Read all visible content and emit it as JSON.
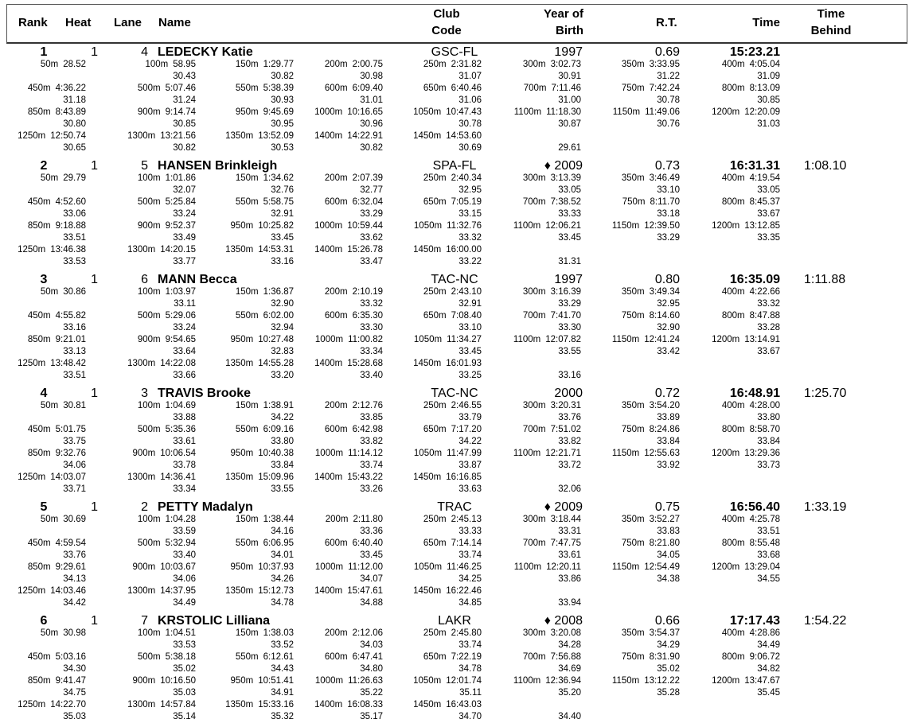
{
  "header": {
    "rank": "Rank",
    "heat": "Heat",
    "lane": "Lane",
    "name": "Name",
    "club_1": "Club",
    "club_2": "Code",
    "yob_1": "Year of",
    "yob_2": "Birth",
    "rt": "R.T.",
    "time": "Time",
    "behind_1": "Time",
    "behind_2": "Behind"
  },
  "entries": [
    {
      "rank": "1",
      "heat": "1",
      "lane": "4",
      "name": "LEDECKY Katie",
      "club": "GSC-FL",
      "year": "1997",
      "rt": "0.69",
      "time": "15:23.21",
      "behind": "",
      "splits": [
        [
          "50m",
          "28.52",
          ""
        ],
        [
          "100m",
          "58.95",
          "30.43"
        ],
        [
          "150m",
          "1:29.77",
          "30.82"
        ],
        [
          "200m",
          "2:00.75",
          "30.98"
        ],
        [
          "250m",
          "2:31.82",
          "31.07"
        ],
        [
          "300m",
          "3:02.73",
          "30.91"
        ],
        [
          "350m",
          "3:33.95",
          "31.22"
        ],
        [
          "400m",
          "4:05.04",
          "31.09"
        ],
        [
          "450m",
          "4:36.22",
          "31.18"
        ],
        [
          "500m",
          "5:07.46",
          "31.24"
        ],
        [
          "550m",
          "5:38.39",
          "30.93"
        ],
        [
          "600m",
          "6:09.40",
          "31.01"
        ],
        [
          "650m",
          "6:40.46",
          "31.06"
        ],
        [
          "700m",
          "7:11.46",
          "31.00"
        ],
        [
          "750m",
          "7:42.24",
          "30.78"
        ],
        [
          "800m",
          "8:13.09",
          "30.85"
        ],
        [
          "850m",
          "8:43.89",
          "30.80"
        ],
        [
          "900m",
          "9:14.74",
          "30.85"
        ],
        [
          "950m",
          "9:45.69",
          "30.95"
        ],
        [
          "1000m",
          "10:16.65",
          "30.96"
        ],
        [
          "1050m",
          "10:47.43",
          "30.78"
        ],
        [
          "1100m",
          "11:18.30",
          "30.87"
        ],
        [
          "1150m",
          "11:49.06",
          "30.76"
        ],
        [
          "1200m",
          "12:20.09",
          "31.03"
        ],
        [
          "1250m",
          "12:50.74",
          "30.65"
        ],
        [
          "1300m",
          "13:21.56",
          "30.82"
        ],
        [
          "1350m",
          "13:52.09",
          "30.53"
        ],
        [
          "1400m",
          "14:22.91",
          "30.82"
        ],
        [
          "1450m",
          "14:53.60",
          "30.69"
        ]
      ],
      "final_split": "29.61"
    },
    {
      "rank": "2",
      "heat": "1",
      "lane": "5",
      "name": "HANSEN Brinkleigh",
      "club": "SPA-FL",
      "year": "♦ 2009",
      "rt": "0.73",
      "time": "16:31.31",
      "behind": "1:08.10",
      "splits": [
        [
          "50m",
          "29.79",
          ""
        ],
        [
          "100m",
          "1:01.86",
          "32.07"
        ],
        [
          "150m",
          "1:34.62",
          "32.76"
        ],
        [
          "200m",
          "2:07.39",
          "32.77"
        ],
        [
          "250m",
          "2:40.34",
          "32.95"
        ],
        [
          "300m",
          "3:13.39",
          "33.05"
        ],
        [
          "350m",
          "3:46.49",
          "33.10"
        ],
        [
          "400m",
          "4:19.54",
          "33.05"
        ],
        [
          "450m",
          "4:52.60",
          "33.06"
        ],
        [
          "500m",
          "5:25.84",
          "33.24"
        ],
        [
          "550m",
          "5:58.75",
          "32.91"
        ],
        [
          "600m",
          "6:32.04",
          "33.29"
        ],
        [
          "650m",
          "7:05.19",
          "33.15"
        ],
        [
          "700m",
          "7:38.52",
          "33.33"
        ],
        [
          "750m",
          "8:11.70",
          "33.18"
        ],
        [
          "800m",
          "8:45.37",
          "33.67"
        ],
        [
          "850m",
          "9:18.88",
          "33.51"
        ],
        [
          "900m",
          "9:52.37",
          "33.49"
        ],
        [
          "950m",
          "10:25.82",
          "33.45"
        ],
        [
          "1000m",
          "10:59.44",
          "33.62"
        ],
        [
          "1050m",
          "11:32.76",
          "33.32"
        ],
        [
          "1100m",
          "12:06.21",
          "33.45"
        ],
        [
          "1150m",
          "12:39.50",
          "33.29"
        ],
        [
          "1200m",
          "13:12.85",
          "33.35"
        ],
        [
          "1250m",
          "13:46.38",
          "33.53"
        ],
        [
          "1300m",
          "14:20.15",
          "33.77"
        ],
        [
          "1350m",
          "14:53.31",
          "33.16"
        ],
        [
          "1400m",
          "15:26.78",
          "33.47"
        ],
        [
          "1450m",
          "16:00.00",
          "33.22"
        ]
      ],
      "final_split": "31.31"
    },
    {
      "rank": "3",
      "heat": "1",
      "lane": "6",
      "name": "MANN Becca",
      "club": "TAC-NC",
      "year": "1997",
      "rt": "0.80",
      "time": "16:35.09",
      "behind": "1:11.88",
      "splits": [
        [
          "50m",
          "30.86",
          ""
        ],
        [
          "100m",
          "1:03.97",
          "33.11"
        ],
        [
          "150m",
          "1:36.87",
          "32.90"
        ],
        [
          "200m",
          "2:10.19",
          "33.32"
        ],
        [
          "250m",
          "2:43.10",
          "32.91"
        ],
        [
          "300m",
          "3:16.39",
          "33.29"
        ],
        [
          "350m",
          "3:49.34",
          "32.95"
        ],
        [
          "400m",
          "4:22.66",
          "33.32"
        ],
        [
          "450m",
          "4:55.82",
          "33.16"
        ],
        [
          "500m",
          "5:29.06",
          "33.24"
        ],
        [
          "550m",
          "6:02.00",
          "32.94"
        ],
        [
          "600m",
          "6:35.30",
          "33.30"
        ],
        [
          "650m",
          "7:08.40",
          "33.10"
        ],
        [
          "700m",
          "7:41.70",
          "33.30"
        ],
        [
          "750m",
          "8:14.60",
          "32.90"
        ],
        [
          "800m",
          "8:47.88",
          "33.28"
        ],
        [
          "850m",
          "9:21.01",
          "33.13"
        ],
        [
          "900m",
          "9:54.65",
          "33.64"
        ],
        [
          "950m",
          "10:27.48",
          "32.83"
        ],
        [
          "1000m",
          "11:00.82",
          "33.34"
        ],
        [
          "1050m",
          "11:34.27",
          "33.45"
        ],
        [
          "1100m",
          "12:07.82",
          "33.55"
        ],
        [
          "1150m",
          "12:41.24",
          "33.42"
        ],
        [
          "1200m",
          "13:14.91",
          "33.67"
        ],
        [
          "1250m",
          "13:48.42",
          "33.51"
        ],
        [
          "1300m",
          "14:22.08",
          "33.66"
        ],
        [
          "1350m",
          "14:55.28",
          "33.20"
        ],
        [
          "1400m",
          "15:28.68",
          "33.40"
        ],
        [
          "1450m",
          "16:01.93",
          "33.25"
        ]
      ],
      "final_split": "33.16"
    },
    {
      "rank": "4",
      "heat": "1",
      "lane": "3",
      "name": "TRAVIS Brooke",
      "club": "TAC-NC",
      "year": "2000",
      "rt": "0.72",
      "time": "16:48.91",
      "behind": "1:25.70",
      "splits": [
        [
          "50m",
          "30.81",
          ""
        ],
        [
          "100m",
          "1:04.69",
          "33.88"
        ],
        [
          "150m",
          "1:38.91",
          "34.22"
        ],
        [
          "200m",
          "2:12.76",
          "33.85"
        ],
        [
          "250m",
          "2:46.55",
          "33.79"
        ],
        [
          "300m",
          "3:20.31",
          "33.76"
        ],
        [
          "350m",
          "3:54.20",
          "33.89"
        ],
        [
          "400m",
          "4:28.00",
          "33.80"
        ],
        [
          "450m",
          "5:01.75",
          "33.75"
        ],
        [
          "500m",
          "5:35.36",
          "33.61"
        ],
        [
          "550m",
          "6:09.16",
          "33.80"
        ],
        [
          "600m",
          "6:42.98",
          "33.82"
        ],
        [
          "650m",
          "7:17.20",
          "34.22"
        ],
        [
          "700m",
          "7:51.02",
          "33.82"
        ],
        [
          "750m",
          "8:24.86",
          "33.84"
        ],
        [
          "800m",
          "8:58.70",
          "33.84"
        ],
        [
          "850m",
          "9:32.76",
          "34.06"
        ],
        [
          "900m",
          "10:06.54",
          "33.78"
        ],
        [
          "950m",
          "10:40.38",
          "33.84"
        ],
        [
          "1000m",
          "11:14.12",
          "33.74"
        ],
        [
          "1050m",
          "11:47.99",
          "33.87"
        ],
        [
          "1100m",
          "12:21.71",
          "33.72"
        ],
        [
          "1150m",
          "12:55.63",
          "33.92"
        ],
        [
          "1200m",
          "13:29.36",
          "33.73"
        ],
        [
          "1250m",
          "14:03.07",
          "33.71"
        ],
        [
          "1300m",
          "14:36.41",
          "33.34"
        ],
        [
          "1350m",
          "15:09.96",
          "33.55"
        ],
        [
          "1400m",
          "15:43.22",
          "33.26"
        ],
        [
          "1450m",
          "16:16.85",
          "33.63"
        ]
      ],
      "final_split": "32.06"
    },
    {
      "rank": "5",
      "heat": "1",
      "lane": "2",
      "name": "PETTY Madalyn",
      "club": "TRAC",
      "year": "♦ 2009",
      "rt": "0.75",
      "time": "16:56.40",
      "behind": "1:33.19",
      "splits": [
        [
          "50m",
          "30.69",
          ""
        ],
        [
          "100m",
          "1:04.28",
          "33.59"
        ],
        [
          "150m",
          "1:38.44",
          "34.16"
        ],
        [
          "200m",
          "2:11.80",
          "33.36"
        ],
        [
          "250m",
          "2:45.13",
          "33.33"
        ],
        [
          "300m",
          "3:18.44",
          "33.31"
        ],
        [
          "350m",
          "3:52.27",
          "33.83"
        ],
        [
          "400m",
          "4:25.78",
          "33.51"
        ],
        [
          "450m",
          "4:59.54",
          "33.76"
        ],
        [
          "500m",
          "5:32.94",
          "33.40"
        ],
        [
          "550m",
          "6:06.95",
          "34.01"
        ],
        [
          "600m",
          "6:40.40",
          "33.45"
        ],
        [
          "650m",
          "7:14.14",
          "33.74"
        ],
        [
          "700m",
          "7:47.75",
          "33.61"
        ],
        [
          "750m",
          "8:21.80",
          "34.05"
        ],
        [
          "800m",
          "8:55.48",
          "33.68"
        ],
        [
          "850m",
          "9:29.61",
          "34.13"
        ],
        [
          "900m",
          "10:03.67",
          "34.06"
        ],
        [
          "950m",
          "10:37.93",
          "34.26"
        ],
        [
          "1000m",
          "11:12.00",
          "34.07"
        ],
        [
          "1050m",
          "11:46.25",
          "34.25"
        ],
        [
          "1100m",
          "12:20.11",
          "33.86"
        ],
        [
          "1150m",
          "12:54.49",
          "34.38"
        ],
        [
          "1200m",
          "13:29.04",
          "34.55"
        ],
        [
          "1250m",
          "14:03.46",
          "34.42"
        ],
        [
          "1300m",
          "14:37.95",
          "34.49"
        ],
        [
          "1350m",
          "15:12.73",
          "34.78"
        ],
        [
          "1400m",
          "15:47.61",
          "34.88"
        ],
        [
          "1450m",
          "16:22.46",
          "34.85"
        ]
      ],
      "final_split": "33.94"
    },
    {
      "rank": "6",
      "heat": "1",
      "lane": "7",
      "name": "KRSTOLIC Lilliana",
      "club": "LAKR",
      "year": "♦ 2008",
      "rt": "0.66",
      "time": "17:17.43",
      "behind": "1:54.22",
      "splits": [
        [
          "50m",
          "30.98",
          ""
        ],
        [
          "100m",
          "1:04.51",
          "33.53"
        ],
        [
          "150m",
          "1:38.03",
          "33.52"
        ],
        [
          "200m",
          "2:12.06",
          "34.03"
        ],
        [
          "250m",
          "2:45.80",
          "33.74"
        ],
        [
          "300m",
          "3:20.08",
          "34.28"
        ],
        [
          "350m",
          "3:54.37",
          "34.29"
        ],
        [
          "400m",
          "4:28.86",
          "34.49"
        ],
        [
          "450m",
          "5:03.16",
          "34.30"
        ],
        [
          "500m",
          "5:38.18",
          "35.02"
        ],
        [
          "550m",
          "6:12.61",
          "34.43"
        ],
        [
          "600m",
          "6:47.41",
          "34.80"
        ],
        [
          "650m",
          "7:22.19",
          "34.78"
        ],
        [
          "700m",
          "7:56.88",
          "34.69"
        ],
        [
          "750m",
          "8:31.90",
          "35.02"
        ],
        [
          "800m",
          "9:06.72",
          "34.82"
        ],
        [
          "850m",
          "9:41.47",
          "34.75"
        ],
        [
          "900m",
          "10:16.50",
          "35.03"
        ],
        [
          "950m",
          "10:51.41",
          "34.91"
        ],
        [
          "1000m",
          "11:26.63",
          "35.22"
        ],
        [
          "1050m",
          "12:01.74",
          "35.11"
        ],
        [
          "1100m",
          "12:36.94",
          "35.20"
        ],
        [
          "1150m",
          "13:12.22",
          "35.28"
        ],
        [
          "1200m",
          "13:47.67",
          "35.45"
        ],
        [
          "1250m",
          "14:22.70",
          "35.03"
        ],
        [
          "1300m",
          "14:57.84",
          "35.14"
        ],
        [
          "1350m",
          "15:33.16",
          "35.32"
        ],
        [
          "1400m",
          "16:08.33",
          "35.17"
        ],
        [
          "1450m",
          "16:43.03",
          "34.70"
        ]
      ],
      "final_split": "34.40"
    }
  ]
}
